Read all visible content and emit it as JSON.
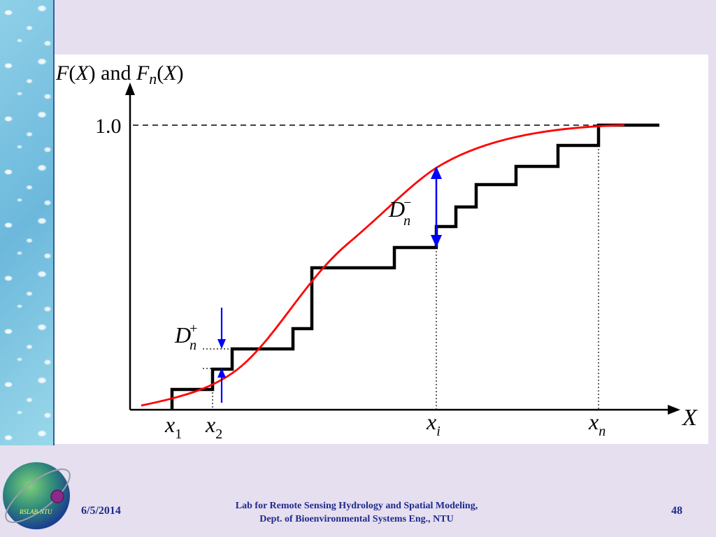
{
  "diagram": {
    "y_axis_label": {
      "part1": "F",
      "part2": "(",
      "part3": "X",
      "part4": ") and ",
      "part5": "F",
      "part6": "n",
      "part7": "(",
      "part8": "X",
      "part9": ")"
    },
    "y_tick_label": "1.0",
    "x_axis_label": "X",
    "x_tick_labels": [
      {
        "base": "x",
        "sub": "1"
      },
      {
        "base": "x",
        "sub": "2"
      },
      {
        "base": "x",
        "sub": "i"
      },
      {
        "base": "x",
        "sub": "n"
      }
    ],
    "d_minus": {
      "base": "D",
      "sub": "n",
      "sup": "−"
    },
    "d_plus": {
      "base": "D",
      "sub": "n",
      "sup": "+"
    },
    "colors": {
      "theoretical_cdf": "#ff0000",
      "empirical_cdf": "#000000",
      "deviation_arrows": "#0000ff"
    }
  },
  "footer": {
    "date": "6/5/2014",
    "lab_line1": "Lab for Remote Sensing Hydrology and Spatial Modeling,",
    "lab_line2": "Dept. of Bioenvironmental Systems Eng., NTU",
    "page_number": "48",
    "logo_text": "RSLAB-NTU"
  }
}
